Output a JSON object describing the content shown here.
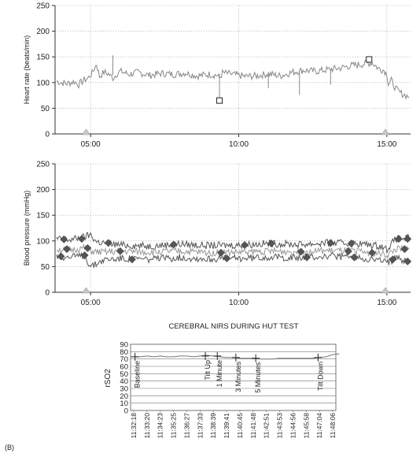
{
  "panel_label": "(B)",
  "chart_data": [
    {
      "type": "line",
      "ylabel": "Heart rate (beats/min)",
      "ylim": [
        0,
        250
      ],
      "yticks": [
        0,
        50,
        100,
        150,
        200,
        250
      ],
      "xlim": [
        3.8,
        15.8
      ],
      "xticks": [
        {
          "v": 5,
          "label": "05:00"
        },
        {
          "v": 10,
          "label": "10:00"
        },
        {
          "v": 15,
          "label": "15:00"
        }
      ],
      "grid": true,
      "color": "#888888",
      "series": [
        {
          "points": [
            [
              3.85,
              103
            ],
            [
              4.0,
              100
            ],
            [
              4.2,
              98
            ],
            [
              4.45,
              102
            ],
            [
              4.6,
              96
            ],
            [
              4.75,
              104
            ],
            [
              4.9,
              108
            ],
            [
              5.05,
              118
            ],
            [
              5.2,
              136
            ],
            [
              5.3,
              112
            ],
            [
              5.45,
              120
            ],
            [
              5.6,
              117
            ],
            [
              5.75,
              109
            ],
            [
              5.9,
              118
            ],
            [
              6.0,
              122
            ],
            [
              6.3,
              116
            ],
            [
              6.6,
              120
            ],
            [
              7.0,
              114
            ],
            [
              7.4,
              118
            ],
            [
              7.8,
              116
            ],
            [
              8.2,
              119
            ],
            [
              8.6,
              113
            ],
            [
              9.0,
              116
            ],
            [
              9.3,
              114
            ],
            [
              9.35,
              108
            ],
            [
              9.45,
              119
            ],
            [
              9.8,
              116
            ],
            [
              10.2,
              112
            ],
            [
              10.6,
              113
            ],
            [
              11.0,
              117
            ],
            [
              11.4,
              113
            ],
            [
              11.8,
              120
            ],
            [
              12.2,
              124
            ],
            [
              12.6,
              122
            ],
            [
              13.0,
              125
            ],
            [
              13.4,
              128
            ],
            [
              13.8,
              133
            ],
            [
              14.2,
              136
            ],
            [
              14.5,
              139
            ],
            [
              14.7,
              128
            ],
            [
              14.9,
              124
            ],
            [
              15.0,
              117
            ],
            [
              15.05,
              97
            ],
            [
              15.15,
              104
            ],
            [
              15.3,
              88
            ],
            [
              15.45,
              80
            ],
            [
              15.6,
              76
            ],
            [
              15.75,
              72
            ]
          ]
        }
      ],
      "spikes": [
        {
          "x": 5.75,
          "from": 114,
          "to": 153
        },
        {
          "x": 9.35,
          "from": 116,
          "to": 67
        },
        {
          "x": 11.0,
          "from": 118,
          "to": 89
        },
        {
          "x": 12.05,
          "from": 122,
          "to": 76
        },
        {
          "x": 13.1,
          "from": 126,
          "to": 96
        }
      ],
      "markers_square": [
        [
          9.35,
          65
        ],
        [
          14.4,
          145
        ]
      ],
      "markers_triangle": [
        4.85,
        14.95
      ]
    },
    {
      "type": "line",
      "ylabel": "Blood pressure (mmHg)",
      "ylim": [
        0,
        250
      ],
      "yticks": [
        0,
        50,
        100,
        150,
        200,
        250
      ],
      "xlim": [
        3.8,
        15.8
      ],
      "xticks": [
        {
          "v": 5,
          "label": "05:00"
        },
        {
          "v": 10,
          "label": "10:00"
        },
        {
          "v": 15,
          "label": "15:00"
        }
      ],
      "grid": true,
      "series": [
        {
          "color": "#555555",
          "points": [
            [
              3.85,
              104
            ],
            [
              4.3,
              102
            ],
            [
              4.8,
              108
            ],
            [
              5.0,
              112
            ],
            [
              5.2,
              98
            ],
            [
              5.5,
              96
            ],
            [
              6.0,
              92
            ],
            [
              7.0,
              90
            ],
            [
              8.0,
              94
            ],
            [
              9.0,
              91
            ],
            [
              10.0,
              92
            ],
            [
              11.0,
              95
            ],
            [
              12.0,
              93
            ],
            [
              13.0,
              96
            ],
            [
              14.0,
              95
            ],
            [
              14.8,
              90
            ],
            [
              15.0,
              84
            ],
            [
              15.3,
              104
            ],
            [
              15.75,
              106
            ]
          ]
        },
        {
          "color": "#999999",
          "points": [
            [
              3.85,
              84
            ],
            [
              4.3,
              82
            ],
            [
              4.8,
              86
            ],
            [
              5.0,
              80
            ],
            [
              5.2,
              78
            ],
            [
              5.5,
              78
            ],
            [
              6.0,
              80
            ],
            [
              7.0,
              78
            ],
            [
              8.0,
              80
            ],
            [
              9.0,
              77
            ],
            [
              10.0,
              78
            ],
            [
              11.0,
              80
            ],
            [
              12.0,
              79
            ],
            [
              13.0,
              81
            ],
            [
              14.0,
              80
            ],
            [
              14.8,
              75
            ],
            [
              15.0,
              72
            ],
            [
              15.3,
              84
            ],
            [
              15.75,
              84
            ]
          ]
        },
        {
          "color": "#555555",
          "points": [
            [
              3.85,
              70
            ],
            [
              4.3,
              68
            ],
            [
              4.8,
              72
            ],
            [
              5.0,
              50
            ],
            [
              5.15,
              54
            ],
            [
              5.3,
              60
            ],
            [
              5.5,
              64
            ],
            [
              6.0,
              66
            ],
            [
              7.0,
              64
            ],
            [
              8.0,
              68
            ],
            [
              9.0,
              65
            ],
            [
              10.0,
              66
            ],
            [
              11.0,
              69
            ],
            [
              12.0,
              67
            ],
            [
              13.0,
              70
            ],
            [
              14.0,
              68
            ],
            [
              14.8,
              62
            ],
            [
              15.0,
              58
            ],
            [
              15.3,
              66
            ],
            [
              15.75,
              60
            ]
          ]
        }
      ],
      "markers_diamond": [
        [
          4.1,
          103
        ],
        [
          4.7,
          104
        ],
        [
          5.6,
          96
        ],
        [
          7.8,
          93
        ],
        [
          10.2,
          92
        ],
        [
          11.1,
          95
        ],
        [
          13.1,
          96
        ],
        [
          13.8,
          95
        ],
        [
          15.4,
          104
        ],
        [
          15.7,
          104
        ],
        [
          4.2,
          84
        ],
        [
          4.9,
          86
        ],
        [
          6.0,
          80
        ],
        [
          9.4,
          77
        ],
        [
          12.1,
          79
        ],
        [
          13.7,
          80
        ],
        [
          14.5,
          77
        ],
        [
          15.6,
          84
        ],
        [
          4.0,
          70
        ],
        [
          4.8,
          72
        ],
        [
          6.4,
          64
        ],
        [
          9.6,
          66
        ],
        [
          12.3,
          68
        ],
        [
          13.9,
          68
        ],
        [
          15.2,
          64
        ],
        [
          15.7,
          60
        ]
      ],
      "markers_triangle": [
        4.85,
        14.95
      ]
    },
    {
      "type": "line",
      "title": "CEREBRAL NIRS DURING HUT TEST",
      "ylabel": "rSO2",
      "ylim": [
        0,
        90
      ],
      "yticks": [
        0,
        10,
        20,
        30,
        40,
        50,
        60,
        70,
        80,
        90
      ],
      "grid": true,
      "categories": [
        "11:32:18",
        "11:33:20",
        "11:34:23",
        "11:35:25",
        "11:36:27",
        "11:37:33",
        "11:38:39",
        "11:39:41",
        "11:40:45",
        "11:41:48",
        "11:42:51",
        "11:43:53",
        "11:44:56",
        "11:45:58",
        "11:47:04",
        "11:48:06"
      ],
      "series": [
        {
          "color": "#777777",
          "points": [
            [
              0,
              73
            ],
            [
              0.5,
              73
            ],
            [
              1,
              74
            ],
            [
              1.5,
              73
            ],
            [
              2,
              74
            ],
            [
              2.5,
              73
            ],
            [
              3,
              73
            ],
            [
              3.5,
              74
            ],
            [
              4,
              74
            ],
            [
              4.5,
              73
            ],
            [
              5,
              74
            ],
            [
              5.5,
              75
            ],
            [
              6,
              74
            ],
            [
              6.5,
              73
            ],
            [
              7,
              72
            ],
            [
              7.5,
              72
            ],
            [
              8,
              71
            ],
            [
              8.5,
              71
            ],
            [
              9,
              71
            ],
            [
              9.5,
              70
            ],
            [
              10,
              70
            ],
            [
              10.5,
              70
            ],
            [
              11,
              71
            ],
            [
              11.5,
              71
            ],
            [
              12,
              71
            ],
            [
              12.5,
              71
            ],
            [
              13,
              71
            ],
            [
              13.5,
              71
            ],
            [
              14,
              72
            ],
            [
              14.5,
              73
            ],
            [
              15,
              76
            ],
            [
              15.5,
              77
            ]
          ]
        }
      ],
      "events": [
        {
          "x": 0.1,
          "y": 73,
          "label": "Baseline"
        },
        {
          "x": 5.4,
          "y": 74,
          "label": "Tilt Up"
        },
        {
          "x": 6.3,
          "y": 74,
          "label": "1 Minute"
        },
        {
          "x": 7.7,
          "y": 72,
          "label": "3 Minutes"
        },
        {
          "x": 9.2,
          "y": 71,
          "label": "5 Minutes"
        },
        {
          "x": 13.9,
          "y": 72,
          "label": "Tilt Down"
        }
      ]
    }
  ]
}
